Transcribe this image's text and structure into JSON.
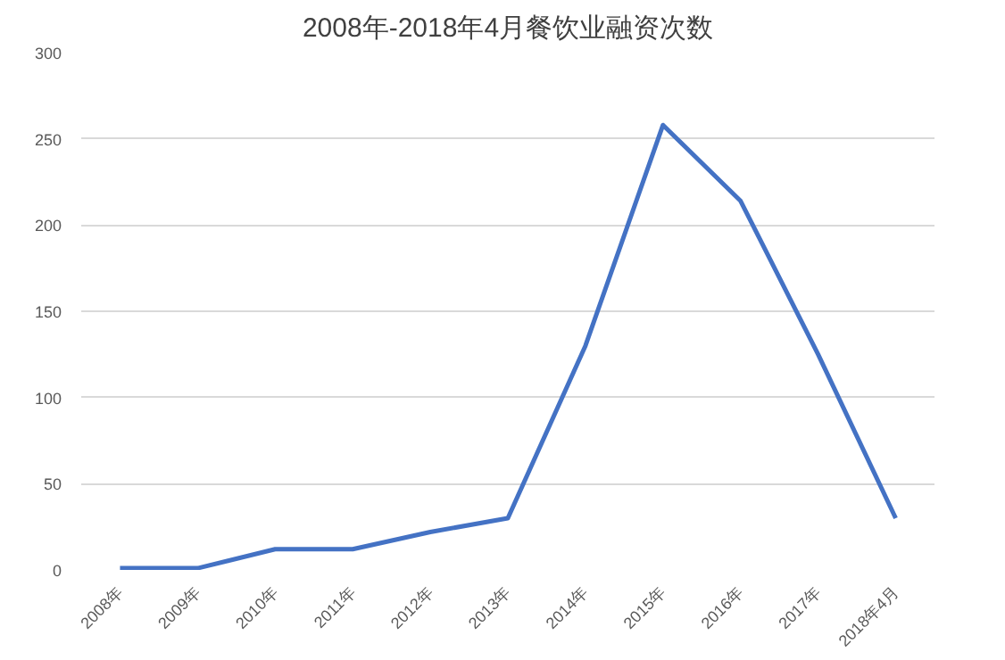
{
  "chart_data": {
    "type": "line",
    "title": "2008年-2018年4月餐饮业融资次数",
    "categories": [
      "2008年",
      "2009年",
      "2010年",
      "2011年",
      "2012年",
      "2013年",
      "2014年",
      "2015年",
      "2016年",
      "2017年",
      "2018年4月"
    ],
    "series": [
      {
        "color": "#4472c4",
        "values": [
          1,
          1,
          12,
          12,
          22,
          30,
          130,
          258,
          214,
          125,
          30
        ]
      }
    ],
    "ylim": [
      0,
      300
    ],
    "yticks": [
      0,
      50,
      100,
      150,
      200,
      250,
      300
    ],
    "grid": "y",
    "marker": "none",
    "line_style": "solid"
  }
}
